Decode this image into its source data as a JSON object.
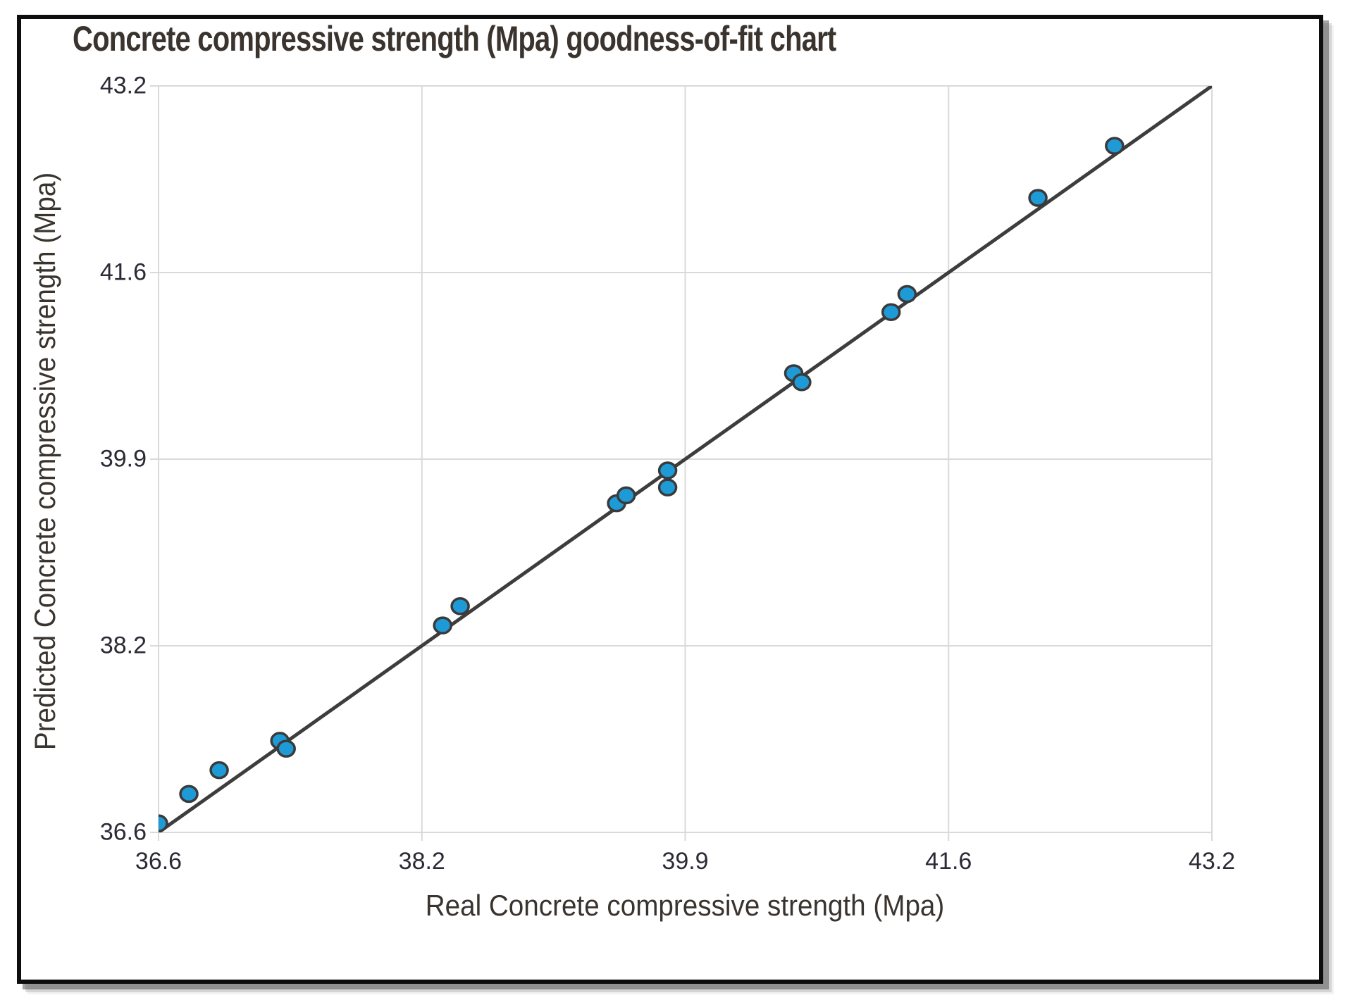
{
  "frame": {
    "background": "#ffffff",
    "border_color": "#0e0e0e",
    "shadow_color": "#9a9a9a"
  },
  "chart_data": {
    "type": "scatter",
    "title": "Concrete compressive strength (Mpa) goodness-of-fit chart",
    "xlabel": "Real Concrete compressive strength (Mpa)",
    "ylabel": "Predicted Concrete compressive strength (Mpa)",
    "xlim": [
      36.6,
      43.2
    ],
    "ylim": [
      36.6,
      43.2
    ],
    "x_tick_labels": [
      "36.6",
      "38.2",
      "39.9",
      "41.6",
      "43.2"
    ],
    "y_tick_labels": [
      "36.6",
      "38.2",
      "39.9",
      "41.6",
      "43.2"
    ],
    "grid": true,
    "legend": "none",
    "series": [
      {
        "name": "identity-fit-line",
        "type": "line",
        "points": [
          [
            36.6,
            36.6
          ],
          [
            43.2,
            43.2
          ]
        ]
      },
      {
        "name": "predicted-vs-real",
        "type": "scatter",
        "points": [
          [
            36.6,
            36.68
          ],
          [
            36.79,
            36.94
          ],
          [
            36.98,
            37.15
          ],
          [
            37.36,
            37.41
          ],
          [
            37.4,
            37.34
          ],
          [
            38.38,
            38.43
          ],
          [
            38.49,
            38.6
          ],
          [
            39.47,
            39.51
          ],
          [
            39.53,
            39.58
          ],
          [
            39.79,
            39.65
          ],
          [
            39.79,
            39.8
          ],
          [
            40.58,
            40.66
          ],
          [
            40.63,
            40.58
          ],
          [
            41.19,
            41.2
          ],
          [
            41.29,
            41.36
          ],
          [
            42.11,
            42.21
          ],
          [
            42.59,
            42.67
          ]
        ]
      }
    ],
    "colors": {
      "grid": "#d9d9d9",
      "line": "#3d3d3d",
      "marker_fill": "#1e9ad6",
      "marker_stroke": "#3a3a3a",
      "title": "#3a332e",
      "axis_title": "#3a342f",
      "tick_label": "#2b2b36"
    }
  }
}
